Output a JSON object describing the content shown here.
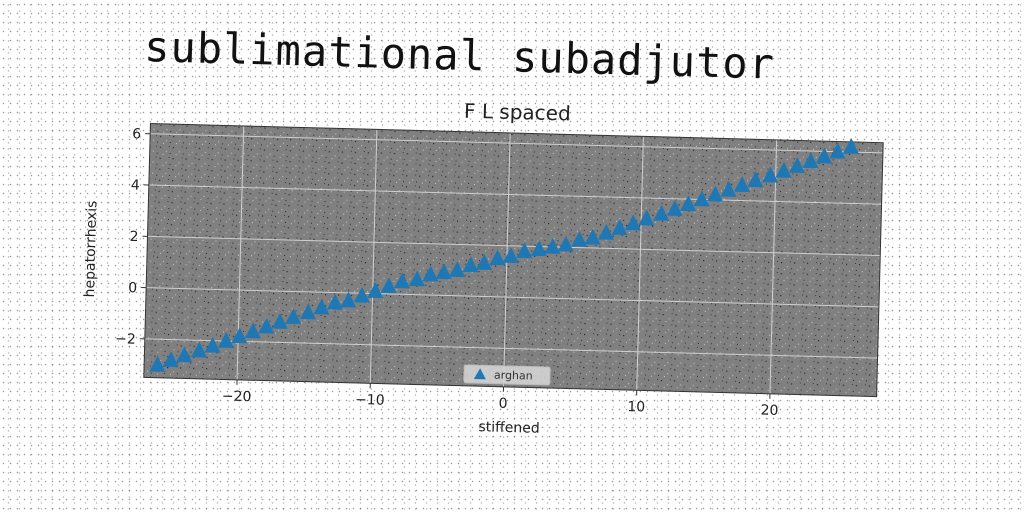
{
  "header": {
    "title": "sublimational subadjutor",
    "subtitle": "F L spaced"
  },
  "chart_data": {
    "type": "scatter",
    "title": "F L spaced",
    "xlabel": "stiffened",
    "ylabel": "hepatorrhexis",
    "xlim": [
      -27,
      28
    ],
    "ylim": [
      -3.5,
      6.4
    ],
    "xticks": [
      -20,
      -10,
      0,
      10,
      20
    ],
    "yticks": [
      -2,
      0,
      2,
      4,
      6
    ],
    "grid": true,
    "legend_position": "bottom-center",
    "colors": {
      "plot_background": "#808080",
      "grid": "#d0d0d0",
      "series": "#1f77b4"
    },
    "marker": "triangle-up",
    "series": [
      {
        "name": "arghan",
        "x": [
          -26.0,
          -25.0,
          -24.0,
          -22.9,
          -21.9,
          -20.9,
          -19.9,
          -18.9,
          -17.9,
          -16.9,
          -15.9,
          -14.8,
          -13.8,
          -12.8,
          -11.8,
          -10.8,
          -9.8,
          -8.8,
          -7.8,
          -6.7,
          -5.7,
          -4.7,
          -3.7,
          -2.7,
          -1.7,
          -0.7,
          0.3,
          1.3,
          2.4,
          3.4,
          4.4,
          5.4,
          6.4,
          7.4,
          8.4,
          9.4,
          10.4,
          11.5,
          12.5,
          13.5,
          14.5,
          15.5,
          16.5,
          17.5,
          18.5,
          19.6,
          20.6,
          21.6,
          22.6,
          23.6,
          24.6,
          25.6
        ],
        "y": [
          -3.0,
          -2.8,
          -2.6,
          -2.4,
          -2.2,
          -2.0,
          -1.8,
          -1.6,
          -1.4,
          -1.2,
          -1.0,
          -0.8,
          -0.6,
          -0.4,
          -0.3,
          -0.1,
          0.1,
          0.3,
          0.5,
          0.6,
          0.8,
          0.9,
          1.0,
          1.2,
          1.3,
          1.5,
          1.6,
          1.8,
          1.9,
          2.0,
          2.1,
          2.3,
          2.4,
          2.6,
          2.8,
          3.0,
          3.2,
          3.4,
          3.6,
          3.8,
          4.0,
          4.2,
          4.4,
          4.6,
          4.8,
          5.0,
          5.2,
          5.4,
          5.6,
          5.8,
          6.0,
          6.2
        ]
      }
    ]
  }
}
